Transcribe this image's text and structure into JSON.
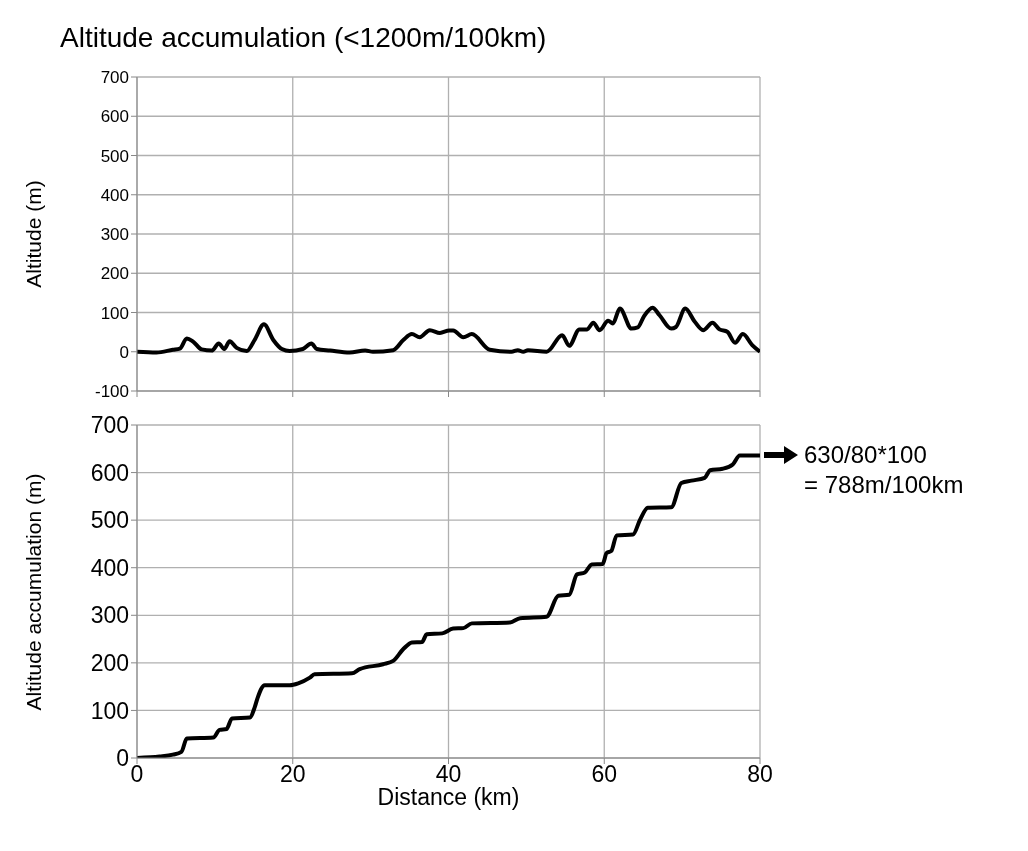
{
  "chart_data": [
    {
      "type": "line",
      "title": "Altitude accumulation (<1200m/100km)",
      "ylabel": "Altitude (m)",
      "color": "#000000",
      "x": [
        0,
        2.5,
        4.6,
        5.5,
        6.4,
        7.2,
        8.3,
        9.6,
        10.5,
        11.2,
        11.9,
        12.8,
        14.1,
        15.1,
        16.3,
        17.5,
        18.6,
        19.6,
        21.3,
        22.4,
        23.1,
        24.8,
        27.3,
        29.3,
        30.3,
        32.9,
        34.2,
        35.3,
        36.3,
        37.6,
        38.9,
        40.1,
        40.6,
        41.9,
        43,
        45.3,
        48.1,
        48.9,
        49.6,
        50.2,
        52.6,
        54.6,
        55.5,
        56.8,
        57.8,
        58.6,
        59.4,
        60.5,
        61.1,
        62,
        63.5,
        64.3,
        65.1,
        66.2,
        67.1,
        68.6,
        69.2,
        70.4,
        71.6,
        72.7,
        73.9,
        74.8,
        75.8,
        76.8,
        77.8,
        79,
        80
      ],
      "values": [
        0,
        -2,
        5,
        8,
        34,
        26,
        6,
        3,
        21,
        7,
        27,
        10,
        2,
        30,
        70,
        30,
        7,
        2,
        7,
        21,
        7,
        3,
        -2,
        3,
        0,
        4,
        30,
        45,
        37,
        55,
        48,
        54,
        54,
        37,
        45,
        5,
        0,
        4,
        0,
        4,
        0,
        42,
        15,
        57,
        57,
        74,
        55,
        79,
        72,
        110,
        59,
        62,
        90,
        112,
        93,
        59,
        63,
        110,
        77,
        55,
        74,
        57,
        51,
        23,
        45,
        17,
        0
      ],
      "xlim": [
        0,
        80
      ],
      "xticks": [
        0,
        20,
        40,
        60,
        80
      ],
      "ylim": [
        -100,
        700
      ],
      "yticks": [
        -100,
        0,
        100,
        200,
        300,
        400,
        500,
        600,
        700
      ],
      "grid": true,
      "tick_labels": "y"
    },
    {
      "type": "line",
      "xlabel": "Distance (km)",
      "ylabel": "Altitude accumulation (m)",
      "color": "#000000",
      "x": [
        0,
        2.9,
        4.6,
        5.7,
        6.4,
        9.8,
        10.6,
        11.5,
        12.2,
        14.5,
        15.1,
        15.5,
        16.4,
        19.6,
        20.7,
        22.2,
        22.8,
        27.6,
        28.6,
        31.6,
        32.9,
        34.2,
        35.3,
        36.6,
        37.2,
        39.2,
        40.6,
        41.9,
        43,
        47.9,
        49.2,
        52.6,
        54.1,
        55.5,
        56.5,
        57.5,
        58.4,
        59.8,
        60.3,
        60.9,
        61.6,
        63.7,
        64.6,
        65.6,
        68.6,
        69.9,
        71.2,
        72.9,
        73.6,
        75.2,
        76.5,
        77.4,
        78.7,
        80
      ],
      "values": [
        0,
        3,
        7,
        13,
        41,
        43,
        59,
        61,
        83,
        85,
        106,
        127,
        153,
        153,
        157,
        169,
        176,
        178,
        187,
        197,
        204,
        229,
        243,
        244,
        260,
        262,
        272,
        273,
        283,
        285,
        294,
        297,
        341,
        343,
        386,
        390,
        407,
        408,
        431,
        435,
        468,
        470,
        501,
        526,
        527,
        578,
        583,
        589,
        605,
        608,
        617,
        636,
        636,
        636
      ],
      "xlim": [
        0,
        80
      ],
      "xticks": [
        0,
        20,
        40,
        60,
        80
      ],
      "ylim": [
        0,
        700
      ],
      "yticks": [
        0,
        100,
        200,
        300,
        400,
        500,
        600,
        700
      ],
      "grid": true,
      "annotations": [
        "630/80*100",
        "= 788m/100km"
      ]
    }
  ]
}
